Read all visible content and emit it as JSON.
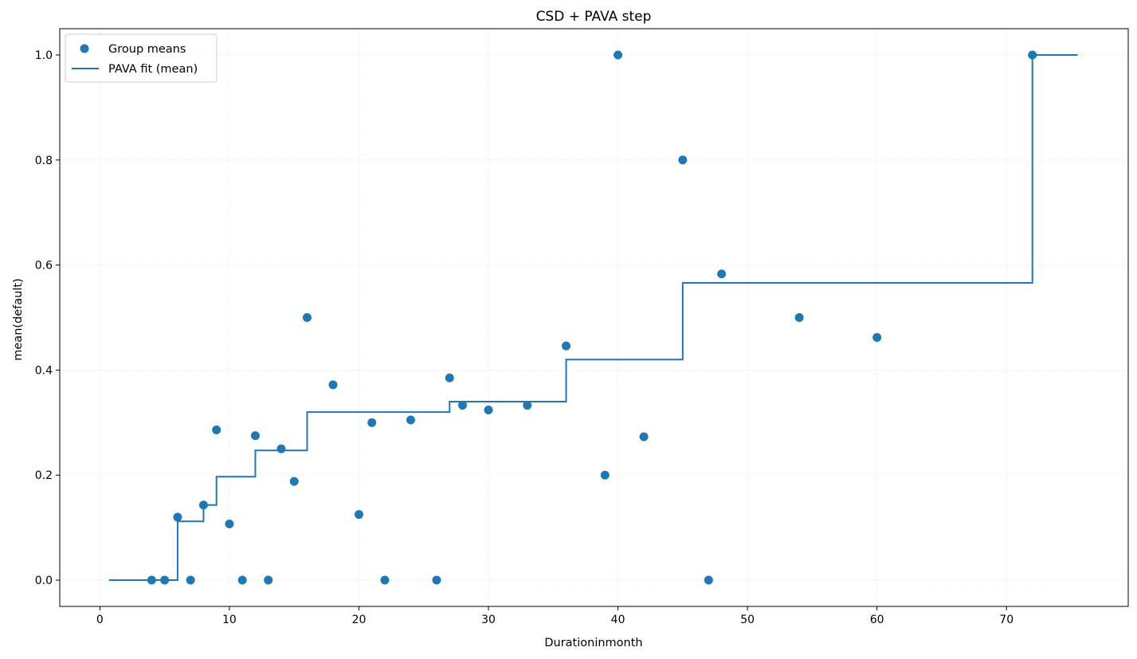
{
  "chart_data": {
    "type": "scatter",
    "title": "CSD + PAVA step",
    "xlabel": "Durationinmonth",
    "ylabel": "mean(default)",
    "xlim": [
      -3.1,
      79.4
    ],
    "ylim": [
      -0.05,
      1.05
    ],
    "xticks": [
      0,
      10,
      20,
      30,
      40,
      50,
      60,
      70
    ],
    "yticks": [
      0.0,
      0.2,
      0.4,
      0.6,
      0.8,
      1.0
    ],
    "xtick_labels": [
      "0",
      "10",
      "20",
      "30",
      "40",
      "50",
      "60",
      "70"
    ],
    "ytick_labels": [
      "0.0",
      "0.2",
      "0.4",
      "0.6",
      "0.8",
      "1.0"
    ],
    "grid": true,
    "legend_position": "upper-left",
    "colors": {
      "series": "#1f77b4",
      "grid": "#e0e0e0",
      "axes": "#000000"
    },
    "series": [
      {
        "name": "Group means",
        "kind": "scatter",
        "x": [
          4,
          5,
          6,
          7,
          8,
          9,
          10,
          11,
          12,
          13,
          14,
          15,
          16,
          18,
          20,
          21,
          22,
          24,
          26,
          27,
          28,
          30,
          33,
          36,
          39,
          40,
          42,
          45,
          47,
          48,
          54,
          60,
          72
        ],
        "y": [
          0.0,
          0.0,
          0.12,
          0.0,
          0.143,
          0.286,
          0.107,
          0.0,
          0.275,
          0.0,
          0.25,
          0.188,
          0.5,
          0.372,
          0.125,
          0.3,
          0.0,
          0.305,
          0.0,
          0.385,
          0.333,
          0.324,
          0.333,
          0.446,
          0.2,
          1.0,
          0.273,
          0.8,
          0.0,
          0.583,
          0.5,
          0.462,
          1.0
        ]
      },
      {
        "name": "PAVA fit (mean)",
        "kind": "step",
        "x": [
          0.7,
          6,
          8,
          9,
          12,
          16,
          27,
          36,
          45,
          72,
          75.5
        ],
        "y": [
          0.0,
          0.112,
          0.143,
          0.197,
          0.247,
          0.32,
          0.34,
          0.42,
          0.566,
          1.0,
          1.0
        ]
      }
    ]
  }
}
